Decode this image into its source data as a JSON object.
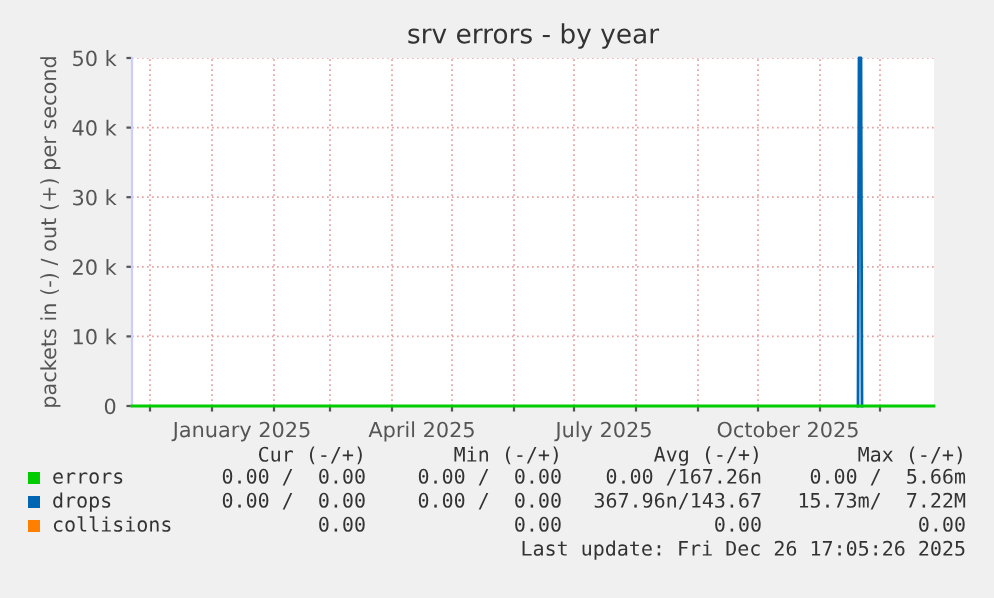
{
  "chart_data": {
    "type": "line",
    "title": "srv errors - by year",
    "ylabel": "packets in (-) / out (+) per second",
    "xlim": [
      "2024-11-22",
      "2025-12-28"
    ],
    "xticks": [
      {
        "value": "2024-12-01",
        "label": null
      },
      {
        "value": "2025-01-01",
        "label": null
      },
      {
        "value": "2025-01-16",
        "label": "January 2025"
      },
      {
        "value": "2025-02-01",
        "label": null
      },
      {
        "value": "2025-03-01",
        "label": null
      },
      {
        "value": "2025-04-01",
        "label": null
      },
      {
        "value": "2025-04-16",
        "label": "April 2025"
      },
      {
        "value": "2025-05-01",
        "label": null
      },
      {
        "value": "2025-06-01",
        "label": null
      },
      {
        "value": "2025-07-01",
        "label": null
      },
      {
        "value": "2025-07-16",
        "label": "July 2025"
      },
      {
        "value": "2025-08-01",
        "label": null
      },
      {
        "value": "2025-09-01",
        "label": null
      },
      {
        "value": "2025-10-01",
        "label": null
      },
      {
        "value": "2025-10-16",
        "label": "October 2025"
      },
      {
        "value": "2025-11-01",
        "label": null
      },
      {
        "value": "2025-12-01",
        "label": null
      }
    ],
    "ylim": [
      0,
      50000
    ],
    "yticks": [
      {
        "value": 0,
        "label": "0"
      },
      {
        "value": 10000,
        "label": "10 k"
      },
      {
        "value": 20000,
        "label": "20 k"
      },
      {
        "value": 30000,
        "label": "30 k"
      },
      {
        "value": 40000,
        "label": "40 k"
      },
      {
        "value": 50000,
        "label": "50 k"
      }
    ],
    "grid": true,
    "legend": "bottom",
    "series": [
      {
        "name": "errors",
        "color": "#00cc00",
        "x": [
          "2024-11-22",
          "2025-12-28"
        ],
        "values": [
          0,
          0
        ]
      },
      {
        "name": "drops",
        "color": "#0066b3",
        "x": [
          "2025-11-20",
          "2025-11-20T12:00",
          "2025-11-21T12:00",
          "2025-11-22"
        ],
        "values": [
          0,
          50000,
          50000,
          0
        ]
      },
      {
        "name": "collisions",
        "color": "#ff8000"
      }
    ],
    "annotations": [
      "Cur (-/+)",
      "Min (-/+)",
      "Avg (-/+)",
      "Max (-/+)",
      "0.00 /  0.00",
      "0.00 /  0.00",
      "0.00 /167.26n",
      "0.00 /  5.66m",
      "0.00 /  0.00",
      "0.00 /  0.00",
      "367.96n/143.67",
      "15.73m/  7.22M",
      "0.00",
      "0.00",
      "0.00",
      "0.00",
      "Last update: Fri Dec 26 17:05:26 2025"
    ]
  }
}
